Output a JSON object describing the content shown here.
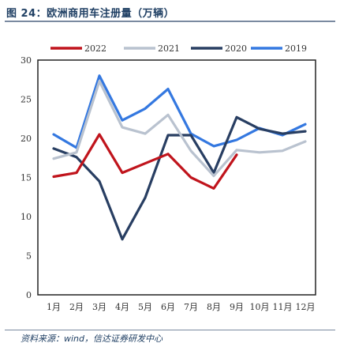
{
  "header": {
    "title": "图 24：欧洲商用车注册量（万辆）"
  },
  "footer": {
    "source": "资料来源：wind，信达证券研发中心"
  },
  "chart_data": {
    "type": "line",
    "title": "",
    "xlabel": "",
    "ylabel": "",
    "categories": [
      "1月",
      "2月",
      "3月",
      "4月",
      "5月",
      "6月",
      "7月",
      "8月",
      "9月",
      "10月",
      "11月",
      "12月"
    ],
    "ylim": [
      0,
      30
    ],
    "yticks": [
      0,
      5,
      10,
      15,
      20,
      25,
      30
    ],
    "legend_position": "top",
    "grid": false,
    "series": [
      {
        "name": "2022",
        "color": "#c0141c",
        "values": [
          15.1,
          15.6,
          20.5,
          15.6,
          16.8,
          18.0,
          15.0,
          13.6,
          17.9,
          null,
          null,
          null
        ]
      },
      {
        "name": "2021",
        "color": "#b9c2cf",
        "values": [
          17.4,
          18.2,
          27.3,
          21.4,
          20.6,
          23.0,
          18.4,
          15.2,
          18.5,
          18.2,
          18.4,
          19.6
        ]
      },
      {
        "name": "2020",
        "color": "#283e62",
        "values": [
          18.7,
          17.6,
          14.5,
          7.1,
          12.4,
          20.4,
          20.4,
          15.6,
          22.7,
          21.2,
          20.6,
          20.9
        ]
      },
      {
        "name": "2019",
        "color": "#3478e0",
        "values": [
          20.5,
          18.8,
          28.0,
          22.3,
          23.8,
          26.3,
          20.6,
          19.0,
          19.8,
          21.3,
          20.4,
          21.8
        ]
      }
    ]
  }
}
